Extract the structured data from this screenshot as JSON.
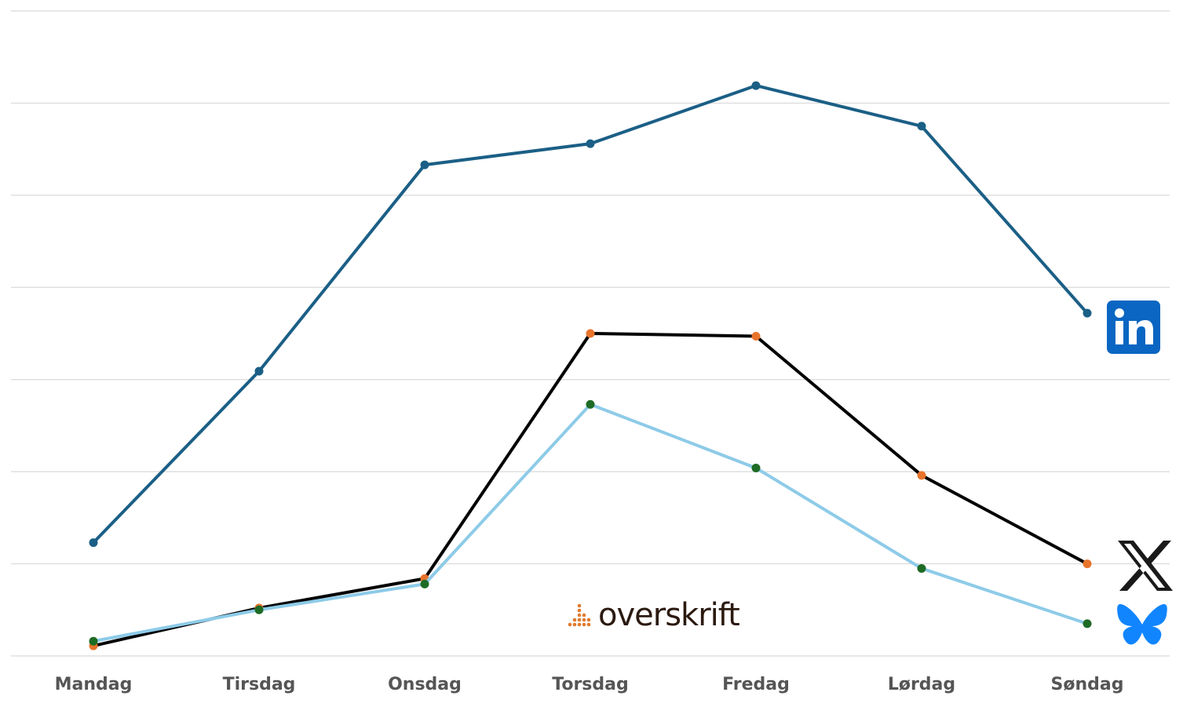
{
  "chart_data": {
    "type": "line",
    "title": "",
    "xlabel": "",
    "ylabel": "",
    "categories": [
      "Mandag",
      "Tirsdag",
      "Onsdag",
      "Torsdag",
      "Fredag",
      "Lørdag",
      "Søndag"
    ],
    "ylim": [
      0,
      7
    ],
    "grid": true,
    "gridlines": 7,
    "legend": "icons at right end of each series",
    "series": [
      {
        "icon": "linkedin-icon",
        "color": "#1b5f86",
        "marker_color": "#1b5f86",
        "values": [
          1.23,
          3.09,
          5.33,
          5.56,
          6.19,
          5.75,
          3.72
        ]
      },
      {
        "icon": "x-icon",
        "color": "#000000",
        "marker_color": "#e8742c",
        "values": [
          0.11,
          0.52,
          0.84,
          3.5,
          3.47,
          1.96,
          1.0
        ]
      },
      {
        "icon": "bluesky-icon",
        "color": "#8dcbe8",
        "marker_color": "#1e6b25",
        "values": [
          0.16,
          0.5,
          0.78,
          2.73,
          2.04,
          0.95,
          0.35
        ]
      }
    ]
  },
  "watermark": {
    "text": "overskrift",
    "dot_color": "#e07b2e"
  },
  "icons": {
    "linkedin_bg": "#0a66c2",
    "x_color": "#1a1a1a",
    "bluesky_color": "#1185fe"
  }
}
